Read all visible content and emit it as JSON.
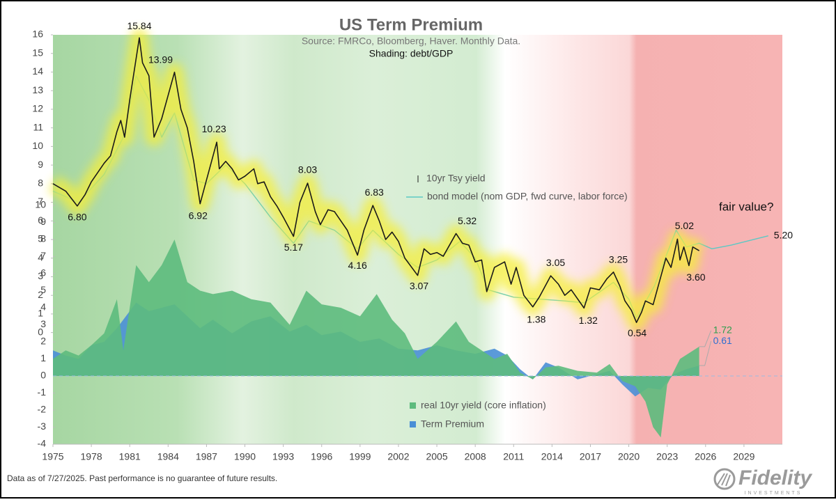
{
  "chart_data": {
    "type": "line",
    "title": "US Term Premium",
    "subtitle": "Source: FMRCo, Bloomberg, Haver.  Monthly Data.",
    "shading_note": "Shading: debt/GDP",
    "note": "fair value?",
    "xlim": [
      1975,
      2032
    ],
    "xticks": [
      1975,
      1978,
      1981,
      1984,
      1987,
      1990,
      1993,
      1996,
      1999,
      2002,
      2005,
      2008,
      2011,
      2014,
      2017,
      2020,
      2023,
      2026,
      2029
    ],
    "ylim": [
      -6,
      16
    ],
    "yticks": [
      0,
      1,
      2,
      3,
      4,
      5,
      6,
      7,
      8,
      9,
      10,
      11,
      12,
      13,
      14,
      15,
      16
    ],
    "y2lim": [
      -4,
      20
    ],
    "y2ticks": [
      -4,
      -3,
      -2,
      -1,
      0,
      1,
      2,
      3,
      4,
      5,
      6,
      7,
      8,
      9,
      10
    ],
    "series": [
      {
        "name": "10yr Tsy yield",
        "type": "line",
        "color": "#1a1a1a",
        "x": [
          1975,
          1975.5,
          1976,
          1976.9,
          1977.5,
          1978,
          1978.5,
          1979,
          1979.5,
          1980,
          1980.3,
          1980.6,
          1981,
          1981.75,
          1982,
          1982.5,
          1982.9,
          1983.5,
          1984.5,
          1985,
          1985.5,
          1986,
          1986.5,
          1987,
          1987.8,
          1988,
          1988.5,
          1989,
          1989.5,
          1990,
          1990.7,
          1991,
          1991.5,
          1992,
          1992.5,
          1993,
          1993.8,
          1994.3,
          1994.9,
          1995.5,
          1995.9,
          1996.5,
          1997,
          1997.5,
          1998,
          1998.8,
          1999.3,
          2000,
          2000.5,
          2001,
          2001.5,
          2002,
          2002.5,
          2003.5,
          2004,
          2004.5,
          2005,
          2005.5,
          2006.5,
          2007,
          2007.5,
          2008,
          2008.5,
          2008.9,
          2009.5,
          2010.3,
          2010.8,
          2011.2,
          2011.8,
          2012.5,
          2013,
          2013.9,
          2014.5,
          2015,
          2015.5,
          2016.5,
          2017,
          2017.7,
          2018.3,
          2018.8,
          2019.3,
          2019.7,
          2020.2,
          2020.6,
          2021,
          2021.3,
          2021.9,
          2022.5,
          2022.9,
          2023.3,
          2023.8,
          2024,
          2024.3,
          2024.7,
          2025,
          2025.5
        ],
        "values": [
          8.0,
          7.8,
          7.6,
          6.8,
          7.4,
          8.1,
          8.6,
          9.1,
          9.5,
          10.8,
          11.4,
          10.5,
          12.5,
          15.84,
          14.5,
          13.8,
          10.5,
          11.5,
          13.99,
          12,
          11,
          9.2,
          6.92,
          8.2,
          10.23,
          8.8,
          9.2,
          8.8,
          8.2,
          8.4,
          8.8,
          8.0,
          8.1,
          7.3,
          6.8,
          6.2,
          5.17,
          7.0,
          8.03,
          6.5,
          5.8,
          6.6,
          6.5,
          6.0,
          5.5,
          4.16,
          5.5,
          6.83,
          6.0,
          5.0,
          5.4,
          4.9,
          4.0,
          3.07,
          4.5,
          4.2,
          4.3,
          4.1,
          5.32,
          4.8,
          4.7,
          3.8,
          3.9,
          2.2,
          3.5,
          3.8,
          2.6,
          3.5,
          2.0,
          1.38,
          1.9,
          3.05,
          2.6,
          2.0,
          2.3,
          1.32,
          2.4,
          2.3,
          2.9,
          3.25,
          2.5,
          1.7,
          1.2,
          0.54,
          1.1,
          1.7,
          1.5,
          3.0,
          4.0,
          3.5,
          5.02,
          3.9,
          4.6,
          3.6,
          4.6,
          4.4
        ]
      },
      {
        "name": "bond model (nom GDP, fwd curve, labor force)",
        "type": "line",
        "color": "#5cc9c4",
        "x": [
          1975,
          1977,
          1979,
          1980.5,
          1981.5,
          1982.5,
          1983.5,
          1984.5,
          1986,
          1987,
          1988.5,
          1990,
          1992,
          1993.8,
          1995,
          1997,
          1998.8,
          2000,
          2002,
          2003.5,
          2005,
          2006.8,
          2008,
          2009,
          2011,
          2013,
          2015,
          2016.5,
          2018.8,
          2020,
          2020.6,
          2022,
          2023.7,
          2024.5,
          2025.5,
          2026.5,
          2028,
          2030.9
        ],
        "values": [
          7.6,
          7.0,
          8.5,
          10.5,
          13.8,
          12.5,
          10.5,
          11.8,
          8.2,
          8.0,
          9.0,
          8.0,
          6.2,
          4.8,
          6.0,
          5.5,
          4.5,
          5.5,
          4.2,
          3.5,
          3.9,
          4.9,
          4.0,
          2.3,
          1.9,
          1.8,
          1.7,
          1.6,
          2.7,
          1.8,
          0.8,
          2.5,
          5.5,
          4.6,
          4.8,
          4.5,
          4.7,
          5.2
        ]
      },
      {
        "name": "real 10yr yield (core inflation)",
        "type": "area",
        "axis": "y2",
        "color": "#5dbb7d",
        "x": [
          1975,
          1976,
          1977,
          1978,
          1979,
          1980,
          1980.5,
          1981.5,
          1982.5,
          1983.5,
          1984.5,
          1985.5,
          1986.5,
          1987.5,
          1989,
          1990.5,
          1992,
          1993.5,
          1994.8,
          1996,
          1997.5,
          1999,
          2000.3,
          2001.5,
          2002.5,
          2003.5,
          2005,
          2006.5,
          2007.5,
          2008.5,
          2009.5,
          2010.5,
          2011.5,
          2012.5,
          2013.5,
          2014.5,
          2016,
          2017.5,
          2018.5,
          2019.5,
          2020.5,
          2021.3,
          2021.9,
          2022.5,
          2023,
          2024,
          2025.5
        ],
        "values": [
          1.0,
          1.5,
          1.2,
          1.8,
          2.5,
          4.5,
          1.5,
          6.5,
          5.5,
          6.5,
          8.0,
          5.5,
          5.0,
          4.8,
          5.0,
          4.5,
          4.3,
          3.0,
          5.0,
          4.2,
          4.0,
          3.5,
          4.8,
          3.3,
          2.5,
          1.0,
          2.0,
          3.2,
          2.0,
          1.5,
          1.0,
          1.3,
          0.2,
          -0.2,
          0.5,
          0.6,
          0.3,
          0.2,
          0.7,
          -0.3,
          -0.6,
          -1.5,
          -3.0,
          -3.6,
          -0.5,
          1.0,
          1.72
        ]
      },
      {
        "name": "Term Premium",
        "type": "area",
        "axis": "y2",
        "color": "#4a8fd6",
        "x": [
          1975,
          1976,
          1977,
          1978,
          1979,
          1980,
          1981.5,
          1982.5,
          1983.5,
          1984.5,
          1985.5,
          1986.5,
          1987.5,
          1989,
          1990.5,
          1992,
          1993.5,
          1994.8,
          1996,
          1997.5,
          1999,
          2000.5,
          2002,
          2003.5,
          2005,
          2006.5,
          2008,
          2009.5,
          2010.5,
          2011.5,
          2012.5,
          2013.5,
          2014.5,
          2016,
          2017.5,
          2018.5,
          2019.5,
          2020.5,
          2021.5,
          2022.5,
          2023.5,
          2024.5,
          2025.5
        ],
        "values": [
          1.5,
          1.2,
          1.0,
          1.8,
          2.0,
          2.8,
          4.3,
          3.8,
          4.0,
          4.2,
          3.5,
          2.8,
          3.3,
          2.5,
          3.2,
          3.5,
          2.6,
          3.0,
          2.4,
          2.6,
          2.0,
          2.2,
          1.6,
          1.5,
          1.8,
          1.5,
          1.3,
          1.6,
          1.2,
          0.4,
          -0.2,
          0.8,
          0.5,
          -0.2,
          0.1,
          0.3,
          -0.5,
          -1.2,
          -0.7,
          -0.8,
          0.1,
          0.4,
          0.61
        ]
      }
    ],
    "annotations": [
      {
        "x": 1981.75,
        "value": 15.84,
        "label": "15.84"
      },
      {
        "x": 1984.5,
        "value": 13.99,
        "label": "13.99"
      },
      {
        "x": 1987.8,
        "value": 10.23,
        "label": "10.23"
      },
      {
        "x": 1986.5,
        "value": 6.92,
        "label": "6.92"
      },
      {
        "x": 1976.9,
        "value": 6.8,
        "label": "6.80"
      },
      {
        "x": 1993.8,
        "value": 5.17,
        "label": "5.17"
      },
      {
        "x": 1994.9,
        "value": 8.03,
        "label": "8.03"
      },
      {
        "x": 1998.8,
        "value": 4.16,
        "label": "4.16"
      },
      {
        "x": 2000,
        "value": 6.83,
        "label": "6.83"
      },
      {
        "x": 2003.5,
        "value": 3.07,
        "label": "3.07"
      },
      {
        "x": 2006.5,
        "value": 5.32,
        "label": "5.32"
      },
      {
        "x": 2012.5,
        "value": 1.38,
        "label": "1.38"
      },
      {
        "x": 2013.9,
        "value": 3.05,
        "label": "3.05"
      },
      {
        "x": 2016.5,
        "value": 1.32,
        "label": "1.32"
      },
      {
        "x": 2018.8,
        "value": 3.25,
        "label": "3.25"
      },
      {
        "x": 2020.6,
        "value": 0.54,
        "label": "0.54"
      },
      {
        "x": 2023.8,
        "value": 5.02,
        "label": "5.02"
      },
      {
        "x": 2024.7,
        "value": 3.6,
        "label": "3.60"
      },
      {
        "x": 2030.9,
        "value": 5.2,
        "label": "5.20"
      },
      {
        "x": 2025.5,
        "value": 1.72,
        "label": "1.72",
        "axis": "y2",
        "color": "#2e9e4e"
      },
      {
        "x": 2025.5,
        "value": 0.61,
        "label": "0.61",
        "axis": "y2",
        "color": "#2f6fd0"
      }
    ],
    "footnote": "Data as of 7/27/2025. Past performance is no guarantee of future results.",
    "logo": "Fidelity",
    "logo_sub": "INVESTMENTS"
  }
}
